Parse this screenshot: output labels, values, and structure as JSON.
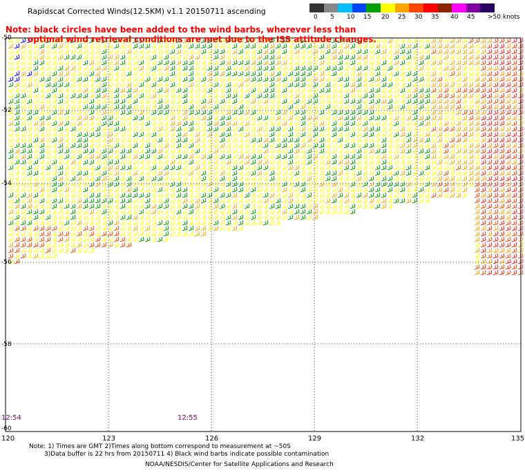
{
  "title": "Rapidscat Corrected Winds(12.5KM) v1.1 20150711 ascending",
  "note_line1": "Note: black circles have been added to the wind barbs, wherever less than",
  "note_line2": "optimal wind retrieval conditions are met due to the ISS attitude changes.",
  "colorbar": {
    "labels": [
      "0",
      "5",
      "10",
      "15",
      "20",
      "25",
      "30",
      "35",
      "40",
      "45",
      ">50 knots"
    ],
    "colors": [
      "#333333",
      "#888888",
      "#00bfff",
      "#0044ff",
      "#00a000",
      "#ffff00",
      "#ffa500",
      "#ff4500",
      "#ff0000",
      "#8b2500",
      "#ff00ff",
      "#8000a0",
      "#2a0060"
    ]
  },
  "lat_labels": [
    "-50",
    "-52",
    "-54",
    "-56",
    "-58",
    "-60"
  ],
  "lon_labels": [
    "120",
    "123",
    "126",
    "129",
    "132",
    "135"
  ],
  "time_labels": [
    "12:54",
    "12:55"
  ],
  "footer_line1": "Note: 1) Times are GMT 2)Times along bottom correspond to measurement at ~50S",
  "footer_line2": "3)Data buffer is 22 hrs from 20150711 4) Black wind barbs indicate possible contamination",
  "footer_line3": "NOAA/NESDIS/Center for Satellite Applications and Research"
}
